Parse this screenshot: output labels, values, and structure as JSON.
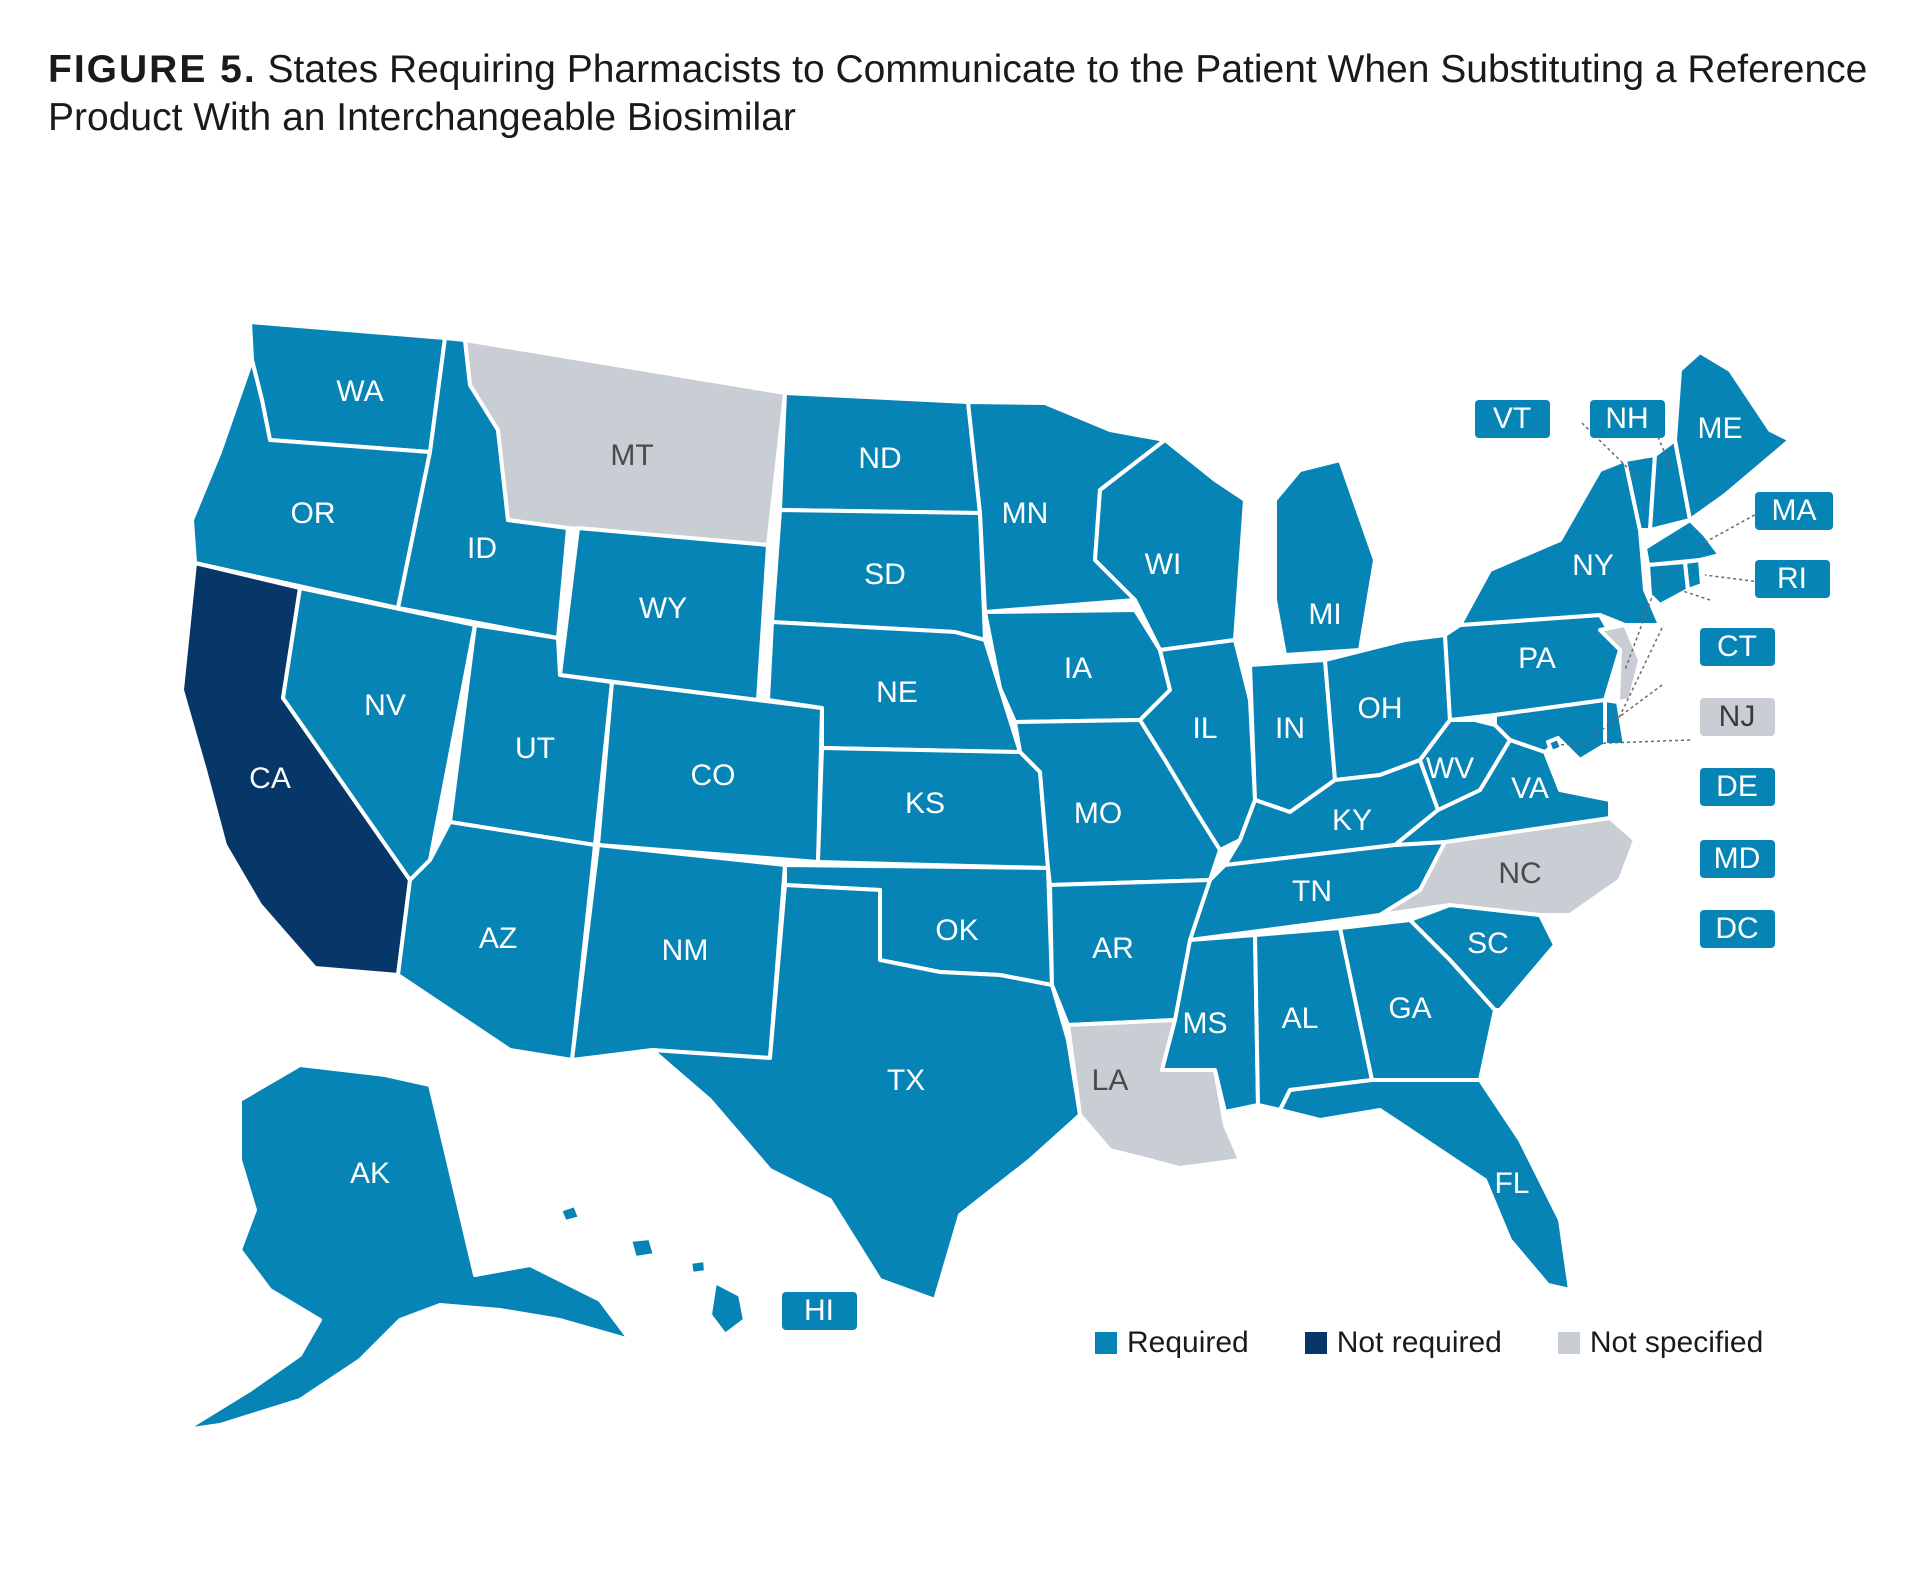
{
  "figure": {
    "label": "FIGURE 5.",
    "title": "States Requiring Pharmacists to Communicate to the Patient When Substituting a Reference Product With an Interchangeable Biosimilar"
  },
  "colors": {
    "required": "#0784b6",
    "not_required": "#063768",
    "not_specified": "#c9cdd4",
    "border": "#ffffff"
  },
  "legend": [
    {
      "label": "Required",
      "category": "required"
    },
    {
      "label": "Not required",
      "category": "not_required"
    },
    {
      "label": "Not specified",
      "category": "not_specified"
    }
  ],
  "states": {
    "WA": "required",
    "OR": "required",
    "CA": "not_required",
    "ID": "required",
    "NV": "required",
    "MT": "not_specified",
    "WY": "required",
    "UT": "required",
    "AZ": "required",
    "CO": "required",
    "NM": "required",
    "ND": "required",
    "SD": "required",
    "NE": "required",
    "KS": "required",
    "OK": "required",
    "TX": "required",
    "MN": "required",
    "IA": "required",
    "MO": "required",
    "AR": "required",
    "LA": "not_specified",
    "WI": "required",
    "IL": "required",
    "MI": "required",
    "IN": "required",
    "OH": "required",
    "KY": "required",
    "TN": "required",
    "MS": "required",
    "AL": "required",
    "GA": "required",
    "FL": "required",
    "SC": "required",
    "NC": "not_specified",
    "VA": "required",
    "WV": "required",
    "PA": "required",
    "NY": "required",
    "ME": "required",
    "AK": "required",
    "HI": "required",
    "VT": "required",
    "NH": "required",
    "MA": "required",
    "RI": "required",
    "CT": "required",
    "NJ": "not_specified",
    "DE": "required",
    "MD": "required",
    "DC": "required"
  }
}
